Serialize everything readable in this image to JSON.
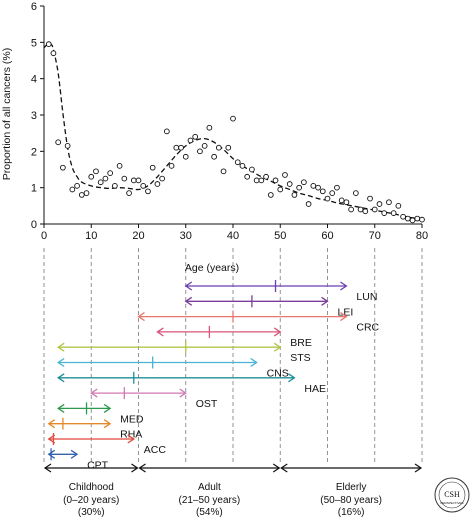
{
  "chart_data": [
    {
      "type": "scatter",
      "title": "",
      "xlabel": "Age (years)",
      "ylabel": "Proportion of all cancers (%)",
      "xlim": [
        0,
        80
      ],
      "ylim": [
        0,
        6
      ],
      "xticks": [
        "0",
        "10",
        "20",
        "30",
        "40",
        "50",
        "60",
        "70",
        "80"
      ],
      "yticks": [
        "0",
        "1",
        "2",
        "3",
        "4",
        "5",
        "6"
      ],
      "grid": false,
      "series": [
        {
          "kind": "points",
          "x": [
            1,
            2,
            3,
            4,
            5,
            6,
            7,
            8,
            9,
            10,
            11,
            12,
            13,
            14,
            15,
            16,
            17,
            18,
            19,
            20,
            21,
            22,
            23,
            24,
            25,
            26,
            27,
            28,
            29,
            30,
            31,
            32,
            33,
            34,
            35,
            36,
            37,
            38,
            39,
            40,
            41,
            42,
            43,
            44,
            45,
            46,
            47,
            48,
            49,
            50,
            51,
            52,
            53,
            54,
            55,
            56,
            57,
            58,
            59,
            60,
            61,
            62,
            63,
            64,
            65,
            66,
            67,
            68,
            69,
            70,
            71,
            72,
            73,
            74,
            75,
            76,
            77,
            78,
            79,
            80
          ],
          "y": [
            4.95,
            4.7,
            2.25,
            1.55,
            2.15,
            0.95,
            1.05,
            0.8,
            0.85,
            1.3,
            1.45,
            1.15,
            1.25,
            1.4,
            1.05,
            1.6,
            1.25,
            0.85,
            1.2,
            1.2,
            1.05,
            0.9,
            1.55,
            1.1,
            1.25,
            2.55,
            1.6,
            2.1,
            2.1,
            1.85,
            2.3,
            2.4,
            2.0,
            2.15,
            2.65,
            1.85,
            2.1,
            1.45,
            2.1,
            2.9,
            1.7,
            1.6,
            1.3,
            1.5,
            1.2,
            1.2,
            1.3,
            0.8,
            1.2,
            0.95,
            1.35,
            1.1,
            0.8,
            1.0,
            1.15,
            0.55,
            1.05,
            1.0,
            0.9,
            0.7,
            0.85,
            1.0,
            0.65,
            0.6,
            0.4,
            0.85,
            0.4,
            0.35,
            0.7,
            0.4,
            0.55,
            0.3,
            0.6,
            0.3,
            0.5,
            0.2,
            0.15,
            0.1,
            0.15,
            0.12
          ]
        },
        {
          "kind": "trend",
          "style": "dashed",
          "x": [
            0,
            1,
            1.5,
            2,
            3,
            4,
            5,
            6,
            7,
            8,
            10,
            12,
            14,
            16,
            18,
            20,
            22,
            24,
            26,
            28,
            30,
            32,
            34,
            36,
            38,
            40,
            42,
            44,
            46,
            48,
            50,
            52,
            54,
            56,
            58,
            60,
            62,
            64,
            66,
            68,
            70,
            72,
            74,
            76,
            78,
            80
          ],
          "y": [
            4.85,
            4.98,
            4.95,
            4.8,
            4.15,
            3.05,
            2.1,
            1.55,
            1.3,
            1.15,
            1.05,
            1.0,
            0.98,
            1.0,
            0.98,
            0.95,
            1.05,
            1.3,
            1.6,
            1.9,
            2.15,
            2.3,
            2.35,
            2.25,
            2.05,
            1.8,
            1.6,
            1.45,
            1.3,
            1.18,
            1.05,
            0.95,
            0.85,
            0.78,
            0.7,
            0.65,
            0.58,
            0.53,
            0.48,
            0.43,
            0.38,
            0.33,
            0.28,
            0.22,
            0.17,
            0.15
          ]
        }
      ]
    },
    {
      "type": "range",
      "xlabel": "Age (years)",
      "xlim": [
        0,
        80
      ],
      "ranges": [
        {
          "label": "LUN",
          "start": 30,
          "end": 64,
          "marker": 49,
          "color": "#6a3fb0"
        },
        {
          "label": "LEI",
          "start": 30,
          "end": 60,
          "marker": 44,
          "color": "#7b3f9a"
        },
        {
          "label": "CRC",
          "start": 20,
          "end": 64,
          "marker": 40,
          "color": "#e8776e"
        },
        {
          "label": "BRE",
          "start": 24,
          "end": 50,
          "marker": 35,
          "color": "#d9547a"
        },
        {
          "label": "STS",
          "start": 3,
          "end": 50,
          "marker": 30,
          "color": "#b0c64a"
        },
        {
          "label": "CNS",
          "start": 3,
          "end": 45,
          "marker": 23,
          "color": "#45b4d6"
        },
        {
          "label": "HAE",
          "start": 3,
          "end": 53,
          "marker": 19,
          "color": "#1e8f96"
        },
        {
          "label": "OST",
          "start": 10,
          "end": 30,
          "marker": 17,
          "color": "#d07ab3"
        },
        {
          "label": "MED",
          "start": 3,
          "end": 14,
          "marker": 9,
          "color": "#2e9a4e"
        },
        {
          "label": "RHA",
          "start": 1,
          "end": 14,
          "marker": 4,
          "color": "#e5872b"
        },
        {
          "label": "ACC",
          "start": 1,
          "end": 19,
          "marker": 2,
          "color": "#e0483a"
        },
        {
          "label": "CPT",
          "start": 1,
          "end": 7,
          "marker": 1.5,
          "color": "#3463b0"
        }
      ],
      "groups": [
        {
          "name": "Childhood",
          "range": "(0–20 years)",
          "share": "(30%)",
          "start": 0,
          "end": 20
        },
        {
          "name": "Adult",
          "range": "(21–50 years)",
          "share": "(54%)",
          "start": 20,
          "end": 50
        },
        {
          "name": "Elderly",
          "range": "(50–80 years)",
          "share": "(16%)",
          "start": 50,
          "end": 80
        }
      ]
    }
  ],
  "logo": {
    "text": "CSH",
    "subtext": "PERSPECTIVES"
  }
}
